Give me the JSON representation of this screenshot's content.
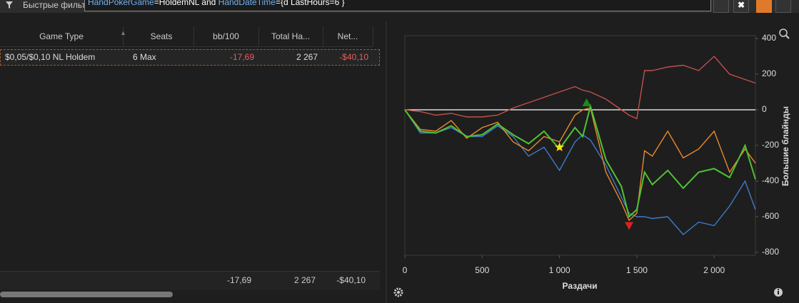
{
  "toolbar": {
    "filter_label": "Быстрые фильт",
    "query": [
      {
        "text": "HandPokerGame",
        "kind": "field"
      },
      {
        "text": "=HoldemNL and ",
        "kind": "plain"
      },
      {
        "text": "HandDateTime",
        "kind": "field"
      },
      {
        "text": "={d LastHours=6 }",
        "kind": "plain"
      }
    ]
  },
  "table": {
    "columns": [
      "Game Type",
      "Seats",
      "bb/100",
      "Total Ha...",
      "Net..."
    ],
    "rows": [
      [
        "$0,05/$0,10 NL Holdem",
        "6 Max",
        "-17,69",
        "2 267",
        "-$40,10"
      ]
    ],
    "footer": [
      "-17,69",
      "2 267",
      "-$40,10"
    ]
  },
  "chart": {
    "type": "line",
    "x_label": "Раздачи",
    "y_label": "Большие блайнды",
    "x": [
      0,
      100,
      200,
      300,
      400,
      500,
      600,
      700,
      800,
      900,
      1000,
      1100,
      1150,
      1200,
      1300,
      1400,
      1450,
      1500,
      1550,
      1600,
      1700,
      1800,
      1900,
      2000,
      2100,
      2200,
      2267
    ],
    "series": [
      {
        "color": "#c0504d",
        "values": [
          0,
          -10,
          -30,
          -20,
          -40,
          -40,
          -30,
          10,
          40,
          70,
          100,
          130,
          110,
          100,
          60,
          0,
          -30,
          -50,
          220,
          220,
          240,
          250,
          220,
          300,
          200,
          170,
          150
        ]
      },
      {
        "color": "#3d7cc9",
        "values": [
          0,
          -130,
          -130,
          -100,
          -150,
          -150,
          -90,
          -150,
          -260,
          -210,
          -340,
          -180,
          -140,
          -170,
          -310,
          -490,
          -580,
          -600,
          -600,
          -610,
          -600,
          -700,
          -630,
          -650,
          -540,
          -400,
          -560
        ]
      },
      {
        "color": "#e8892b",
        "values": [
          0,
          -110,
          -120,
          -60,
          -160,
          -100,
          -70,
          -180,
          -230,
          -150,
          -180,
          -30,
          0,
          10,
          -350,
          -520,
          -620,
          -580,
          -230,
          -260,
          -120,
          -270,
          -220,
          -120,
          -350,
          -220,
          -300
        ]
      },
      {
        "color": "#4fc236",
        "values": [
          0,
          -120,
          -130,
          -90,
          -150,
          -140,
          -80,
          -140,
          -190,
          -120,
          -220,
          -100,
          -150,
          20,
          -280,
          -430,
          -600,
          -560,
          -350,
          -420,
          -340,
          -440,
          -350,
          -330,
          -380,
          -200,
          -390
        ]
      }
    ],
    "markers": [
      {
        "x": 1000,
        "y": -210,
        "shape": "star",
        "color": "#f5e60a"
      },
      {
        "x": 1175,
        "y": 40,
        "shape": "triangle-up",
        "color": "#1a8c1a"
      },
      {
        "x": 1450,
        "y": -650,
        "shape": "triangle-down",
        "color": "#e02020"
      }
    ],
    "xlim": [
      0,
      2267
    ],
    "ylim": [
      -800,
      400
    ],
    "xticks": [
      0,
      500,
      {
        "value": 1000,
        "label": "1 000"
      },
      {
        "value": 1500,
        "label": "1 500"
      },
      {
        "value": 2000,
        "label": "2 000"
      }
    ],
    "yticks": [
      400,
      200,
      0,
      -200,
      -400,
      -600,
      -800
    ],
    "zero_line": true,
    "grid": false
  }
}
